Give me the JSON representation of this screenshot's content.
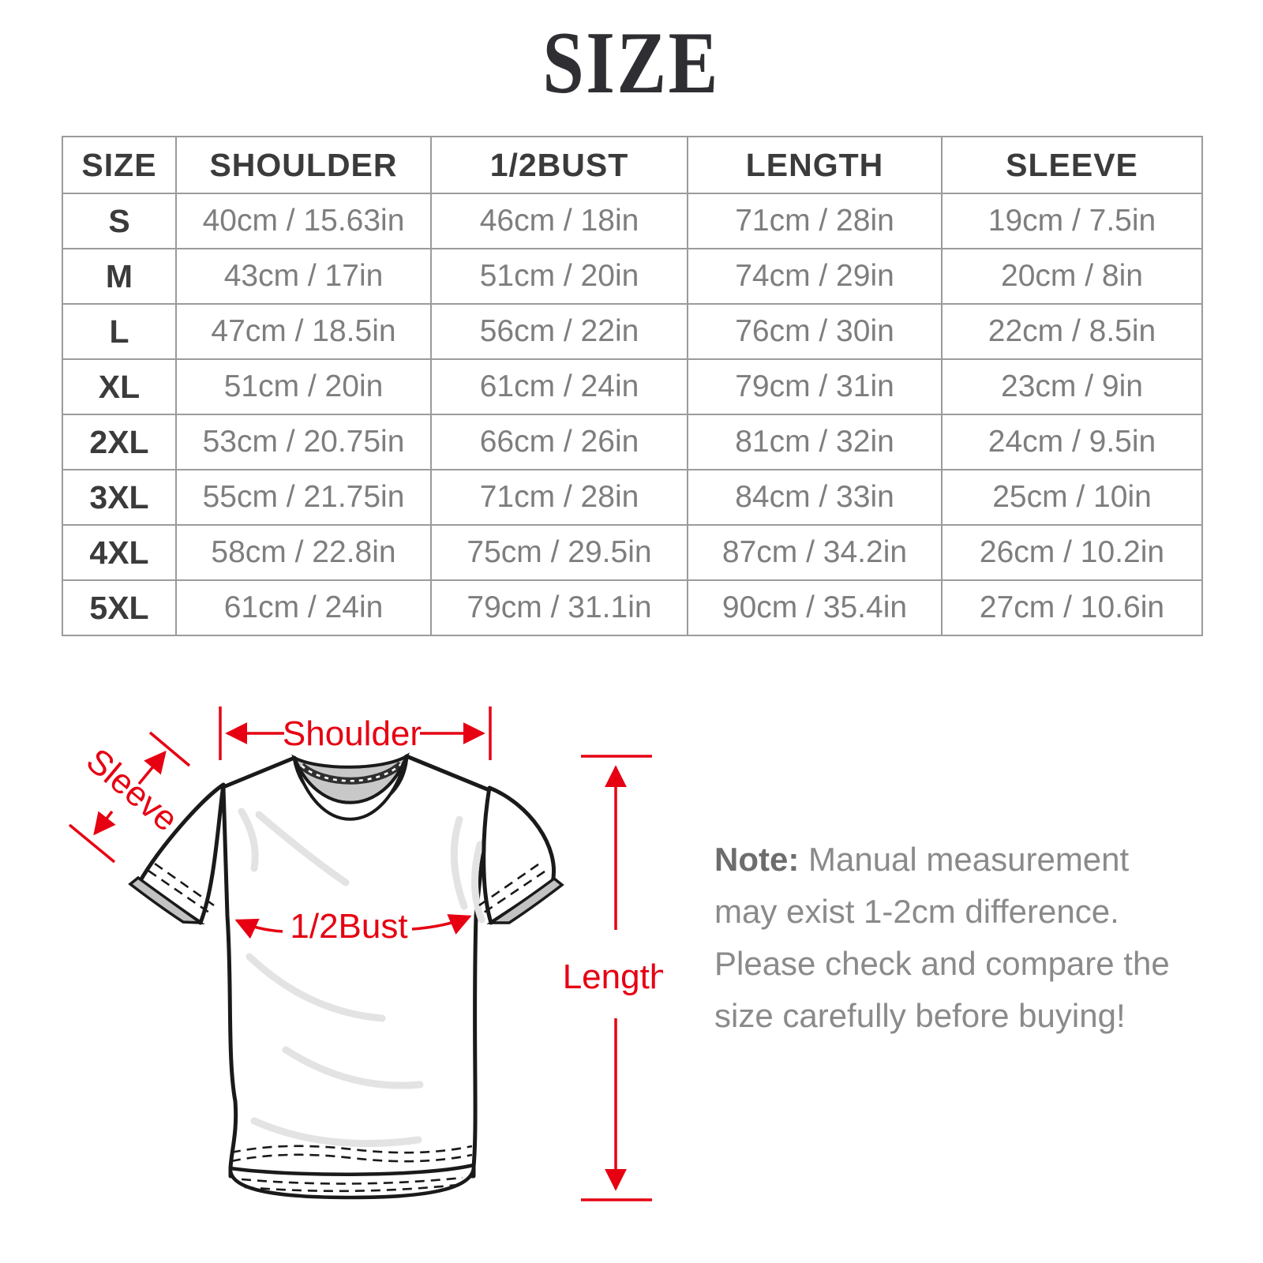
{
  "title": "SIZE",
  "table": {
    "columns": [
      "SIZE",
      "SHOULDER",
      "1/2BUST",
      "LENGTH",
      "SLEEVE"
    ],
    "rows": [
      [
        "S",
        "40cm / 15.63in",
        "46cm / 18in",
        "71cm / 28in",
        "19cm / 7.5in"
      ],
      [
        "M",
        "43cm / 17in",
        "51cm / 20in",
        "74cm / 29in",
        "20cm / 8in"
      ],
      [
        "L",
        "47cm / 18.5in",
        "56cm / 22in",
        "76cm / 30in",
        "22cm / 8.5in"
      ],
      [
        "XL",
        "51cm / 20in",
        "61cm / 24in",
        "79cm / 31in",
        "23cm / 9in"
      ],
      [
        "2XL",
        "53cm / 20.75in",
        "66cm / 26in",
        "81cm / 32in",
        "24cm / 9.5in"
      ],
      [
        "3XL",
        "55cm / 21.75in",
        "71cm / 28in",
        "84cm / 33in",
        "25cm / 10in"
      ],
      [
        "4XL",
        "58cm / 22.8in",
        "75cm / 29.5in",
        "87cm / 34.2in",
        "26cm / 10.2in"
      ],
      [
        "5XL",
        "61cm / 24in",
        "79cm / 31.1in",
        "90cm / 35.4in",
        "27cm / 10.6in"
      ]
    ]
  },
  "diagram": {
    "labels": {
      "shoulder": "Shoulder",
      "sleeve": "Sleeve",
      "bust": "1/2Bust",
      "length": "Length"
    }
  },
  "note": {
    "prefix": "Note:",
    "text": " Manual measurement may exist 1-2cm difference. Please check and compare the size carefully before buying!"
  },
  "colors": {
    "accent_red": "#e60012",
    "title_text": "#2f2f33",
    "table_border": "#9b9b9b",
    "table_header_text": "#3b3b3b",
    "table_value_text": "#7e7e7e",
    "note_text": "#8a8a8a",
    "shirt_outline": "#1a1a1a",
    "collar_inner_gray": "#c8c8c8"
  }
}
